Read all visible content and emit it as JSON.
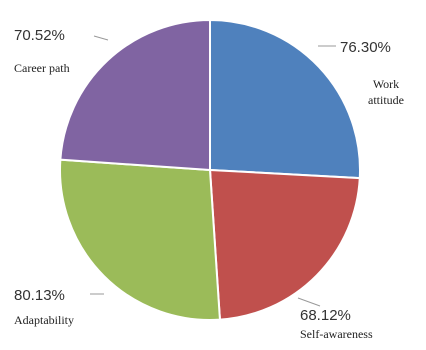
{
  "chart_data": {
    "type": "pie",
    "title": "",
    "categories": [
      "Work attitude",
      "Self-awareness",
      "Adaptability",
      "Career path"
    ],
    "values": [
      76.3,
      68.12,
      80.13,
      70.52
    ],
    "value_labels": [
      "76.30%",
      "68.12%",
      "80.13%",
      "70.52%"
    ],
    "category_lines": [
      [
        "Work",
        "attitude"
      ],
      [
        "Self-awareness"
      ],
      [
        "Adaptability"
      ],
      [
        "Career path"
      ]
    ],
    "colors": [
      "#4F81BD",
      "#C0504D",
      "#9BBB59",
      "#8064A2"
    ],
    "start": "12 o'clock",
    "direction": "clockwise",
    "legend": "none"
  }
}
